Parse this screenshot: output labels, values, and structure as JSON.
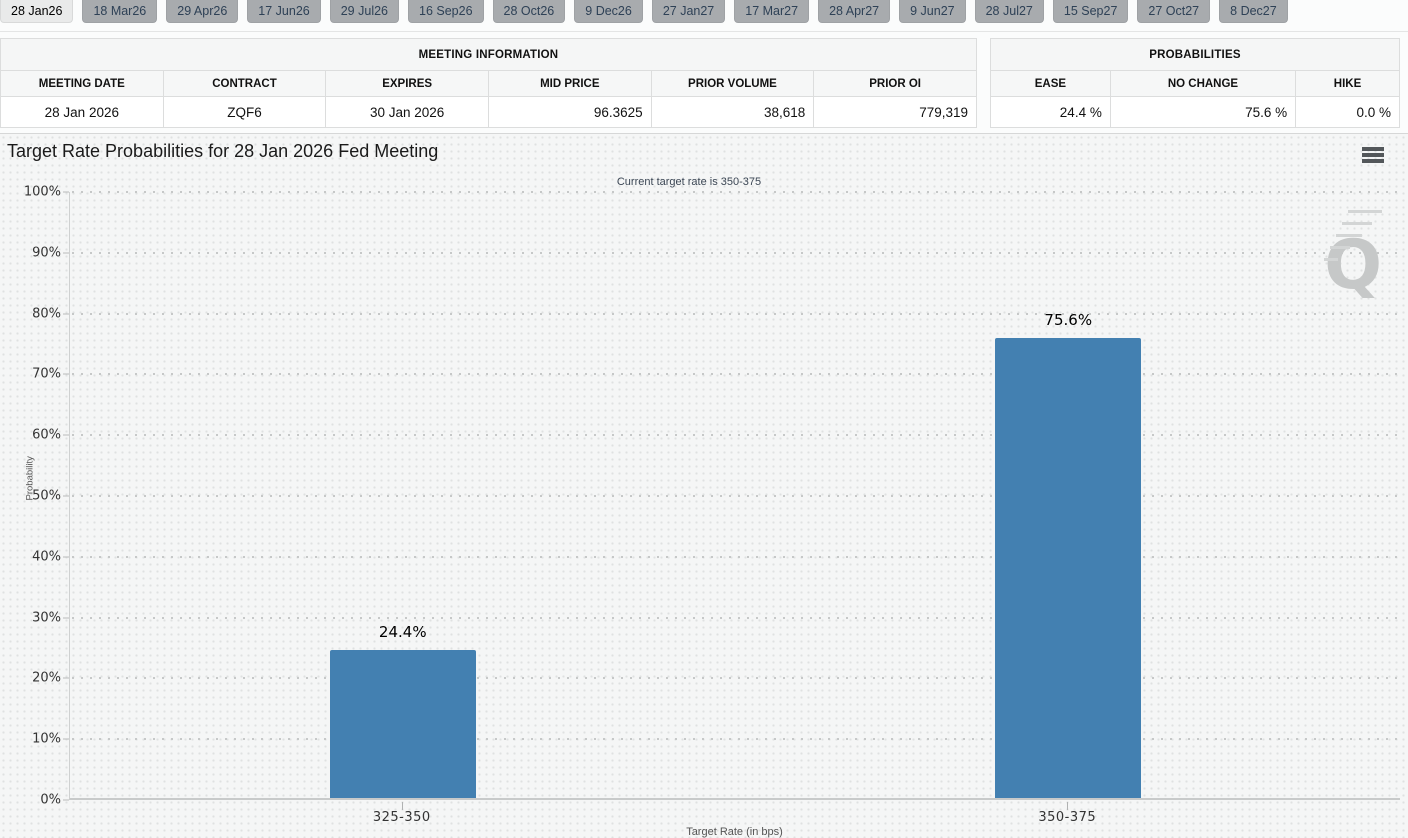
{
  "tabs": {
    "items": [
      {
        "label": "28 Jan26",
        "active": true
      },
      {
        "label": "18 Mar26",
        "active": false
      },
      {
        "label": "29 Apr26",
        "active": false
      },
      {
        "label": "17 Jun26",
        "active": false
      },
      {
        "label": "29 Jul26",
        "active": false
      },
      {
        "label": "16 Sep26",
        "active": false
      },
      {
        "label": "28 Oct26",
        "active": false
      },
      {
        "label": "9 Dec26",
        "active": false
      },
      {
        "label": "27 Jan27",
        "active": false
      },
      {
        "label": "17 Mar27",
        "active": false
      },
      {
        "label": "28 Apr27",
        "active": false
      },
      {
        "label": "9 Jun27",
        "active": false
      },
      {
        "label": "28 Jul27",
        "active": false
      },
      {
        "label": "15 Sep27",
        "active": false
      },
      {
        "label": "27 Oct27",
        "active": false
      },
      {
        "label": "8 Dec27",
        "active": false
      }
    ]
  },
  "meeting_info": {
    "title": "MEETING INFORMATION",
    "columns": [
      "MEETING DATE",
      "CONTRACT",
      "EXPIRES",
      "MID PRICE",
      "PRIOR VOLUME",
      "PRIOR OI"
    ],
    "row": [
      "28 Jan 2026",
      "ZQF6",
      "30 Jan 2026",
      "96.3625",
      "38,618",
      "779,319"
    ]
  },
  "probabilities": {
    "title": "PROBABILITIES",
    "columns": [
      "EASE",
      "NO CHANGE",
      "HIKE"
    ],
    "row": [
      "24.4 %",
      "75.6 %",
      "0.0 %"
    ]
  },
  "chart": {
    "title": "Target Rate Probabilities for 28 Jan 2026 Fed Meeting",
    "subtitle": "Current target rate is 350-375",
    "menu_icon": "hamburger-menu-icon",
    "watermark_letter": "Q"
  },
  "chart_data": {
    "type": "bar",
    "title": "Target Rate Probabilities for 28 Jan 2026 Fed Meeting",
    "subtitle": "Current target rate is 350-375",
    "categories": [
      "325-350",
      "350-375"
    ],
    "values": [
      24.4,
      75.6
    ],
    "bar_labels": [
      "24.4%",
      "75.6%"
    ],
    "xlabel": "Target Rate (in bps)",
    "ylabel": "Probability",
    "ylim": [
      0,
      100
    ],
    "yticks": [
      "0%",
      "10%",
      "20%",
      "30%",
      "40%",
      "50%",
      "60%",
      "70%",
      "80%",
      "90%",
      "100%"
    ],
    "ytick_step": 10,
    "legend": "none",
    "grid": "horizontal-dotted",
    "bar_color": "#4380b1"
  },
  "colors": {
    "bar": "#4380b1",
    "tab_inactive_bg": "#a8abae",
    "tab_active_bg": "#e9eaea",
    "tab_text": "#2e4156",
    "chart_bg": "#f5f6f6",
    "gridline": "#c6c8c8",
    "watermark": "#c6c8c8"
  }
}
